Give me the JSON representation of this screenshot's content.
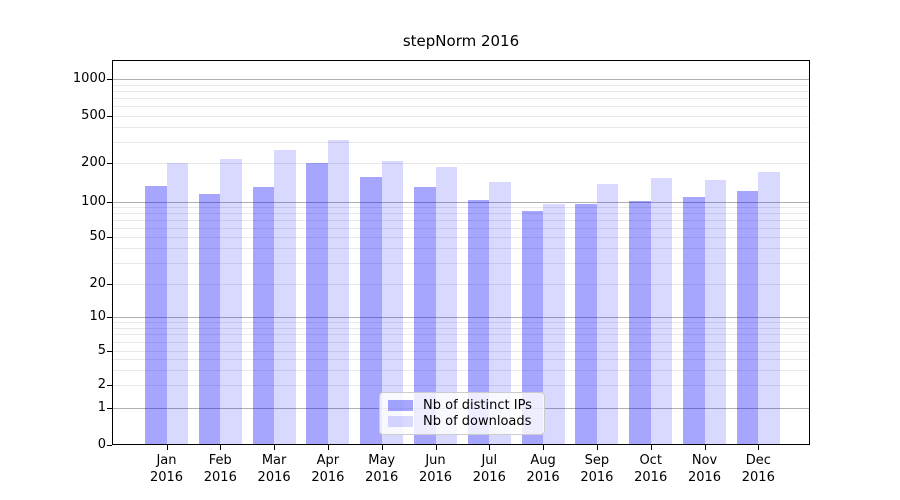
{
  "chart_data": {
    "type": "bar",
    "title": "stepNorm 2016",
    "categories": [
      "Jan 2016",
      "Feb 2016",
      "Mar 2016",
      "Apr 2016",
      "May 2016",
      "Jun 2016",
      "Jul 2016",
      "Aug 2016",
      "Sep 2016",
      "Oct 2016",
      "Nov 2016",
      "Dec 2016"
    ],
    "series": [
      {
        "name": "Nb of distinct IPs",
        "color": "rgba(0,0,255,0.35)",
        "values": [
          132,
          115,
          131,
          200,
          155,
          130,
          103,
          84,
          97,
          101,
          110,
          122
        ]
      },
      {
        "name": "Nb of downloads",
        "color": "rgba(0,0,255,0.15)",
        "values": [
          200,
          215,
          260,
          315,
          210,
          185,
          142,
          97,
          137,
          153,
          148,
          170
        ]
      }
    ],
    "yscale": "log-like with zero baseline",
    "yticks": [
      0,
      1,
      2,
      5,
      10,
      20,
      50,
      100,
      200,
      500,
      1000
    ],
    "ylim": [
      0,
      1100
    ],
    "xlabel": "",
    "ylabel": "",
    "grid": "horizontal major and minor gridlines",
    "legend_position": "lower center"
  },
  "colors": {
    "major_grid": "#b0b0b0",
    "minor_grid": "#e9e9e9",
    "axis": "#000000",
    "legend_border": "#cccccc",
    "background": "#ffffff"
  }
}
